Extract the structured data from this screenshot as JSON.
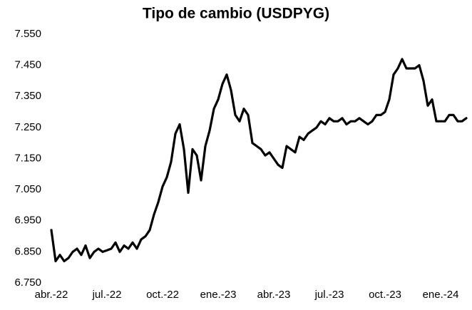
{
  "chart_data": {
    "type": "line",
    "title": "Tipo de cambio (USDPYG)",
    "categories": [
      "abr.-22",
      null,
      null,
      null,
      null,
      null,
      null,
      null,
      null,
      null,
      null,
      null,
      null,
      "jul.-22",
      null,
      null,
      null,
      null,
      null,
      null,
      null,
      null,
      null,
      null,
      null,
      null,
      "oct.-22",
      null,
      null,
      null,
      null,
      null,
      null,
      null,
      null,
      null,
      null,
      null,
      null,
      "ene.-23",
      null,
      null,
      null,
      null,
      null,
      null,
      null,
      null,
      null,
      null,
      null,
      null,
      "abr.-23",
      null,
      null,
      null,
      null,
      null,
      null,
      null,
      null,
      null,
      null,
      null,
      null,
      "jul.-23",
      null,
      null,
      null,
      null,
      null,
      null,
      null,
      null,
      null,
      null,
      null,
      null,
      "oct.-23",
      null,
      null,
      null,
      null,
      null,
      null,
      null,
      null,
      null,
      null,
      null,
      null,
      "ene.-24",
      null,
      null,
      null,
      null,
      null,
      null
    ],
    "values": [
      6920,
      6820,
      6840,
      6820,
      6830,
      6850,
      6860,
      6840,
      6870,
      6830,
      6850,
      6860,
      6850,
      6855,
      6860,
      6880,
      6850,
      6870,
      6860,
      6880,
      6860,
      6890,
      6900,
      6920,
      6970,
      7010,
      7060,
      7090,
      7140,
      7230,
      7260,
      7180,
      7040,
      7180,
      7160,
      7080,
      7190,
      7240,
      7310,
      7340,
      7390,
      7420,
      7370,
      7290,
      7270,
      7310,
      7290,
      7200,
      7190,
      7180,
      7160,
      7170,
      7150,
      7130,
      7120,
      7190,
      7180,
      7170,
      7220,
      7210,
      7230,
      7240,
      7250,
      7270,
      7260,
      7280,
      7270,
      7270,
      7280,
      7260,
      7270,
      7270,
      7280,
      7270,
      7260,
      7270,
      7290,
      7290,
      7300,
      7340,
      7420,
      7440,
      7470,
      7440,
      7440,
      7440,
      7450,
      7400,
      7320,
      7340,
      7270,
      7270,
      7270,
      7290,
      7290,
      7270,
      7270,
      7280
    ],
    "color": "#000000",
    "ylim": [
      6750,
      7550
    ],
    "yticks": [
      {
        "value": 6750,
        "label": "6.750"
      },
      {
        "value": 6850,
        "label": "6.850"
      },
      {
        "value": 6950,
        "label": "6.950"
      },
      {
        "value": 7050,
        "label": "7.050"
      },
      {
        "value": 7150,
        "label": "7.150"
      },
      {
        "value": 7250,
        "label": "7.250"
      },
      {
        "value": 7350,
        "label": "7.350"
      },
      {
        "value": 7450,
        "label": "7.450"
      },
      {
        "value": 7550,
        "label": "7.550"
      }
    ],
    "grid": false
  }
}
